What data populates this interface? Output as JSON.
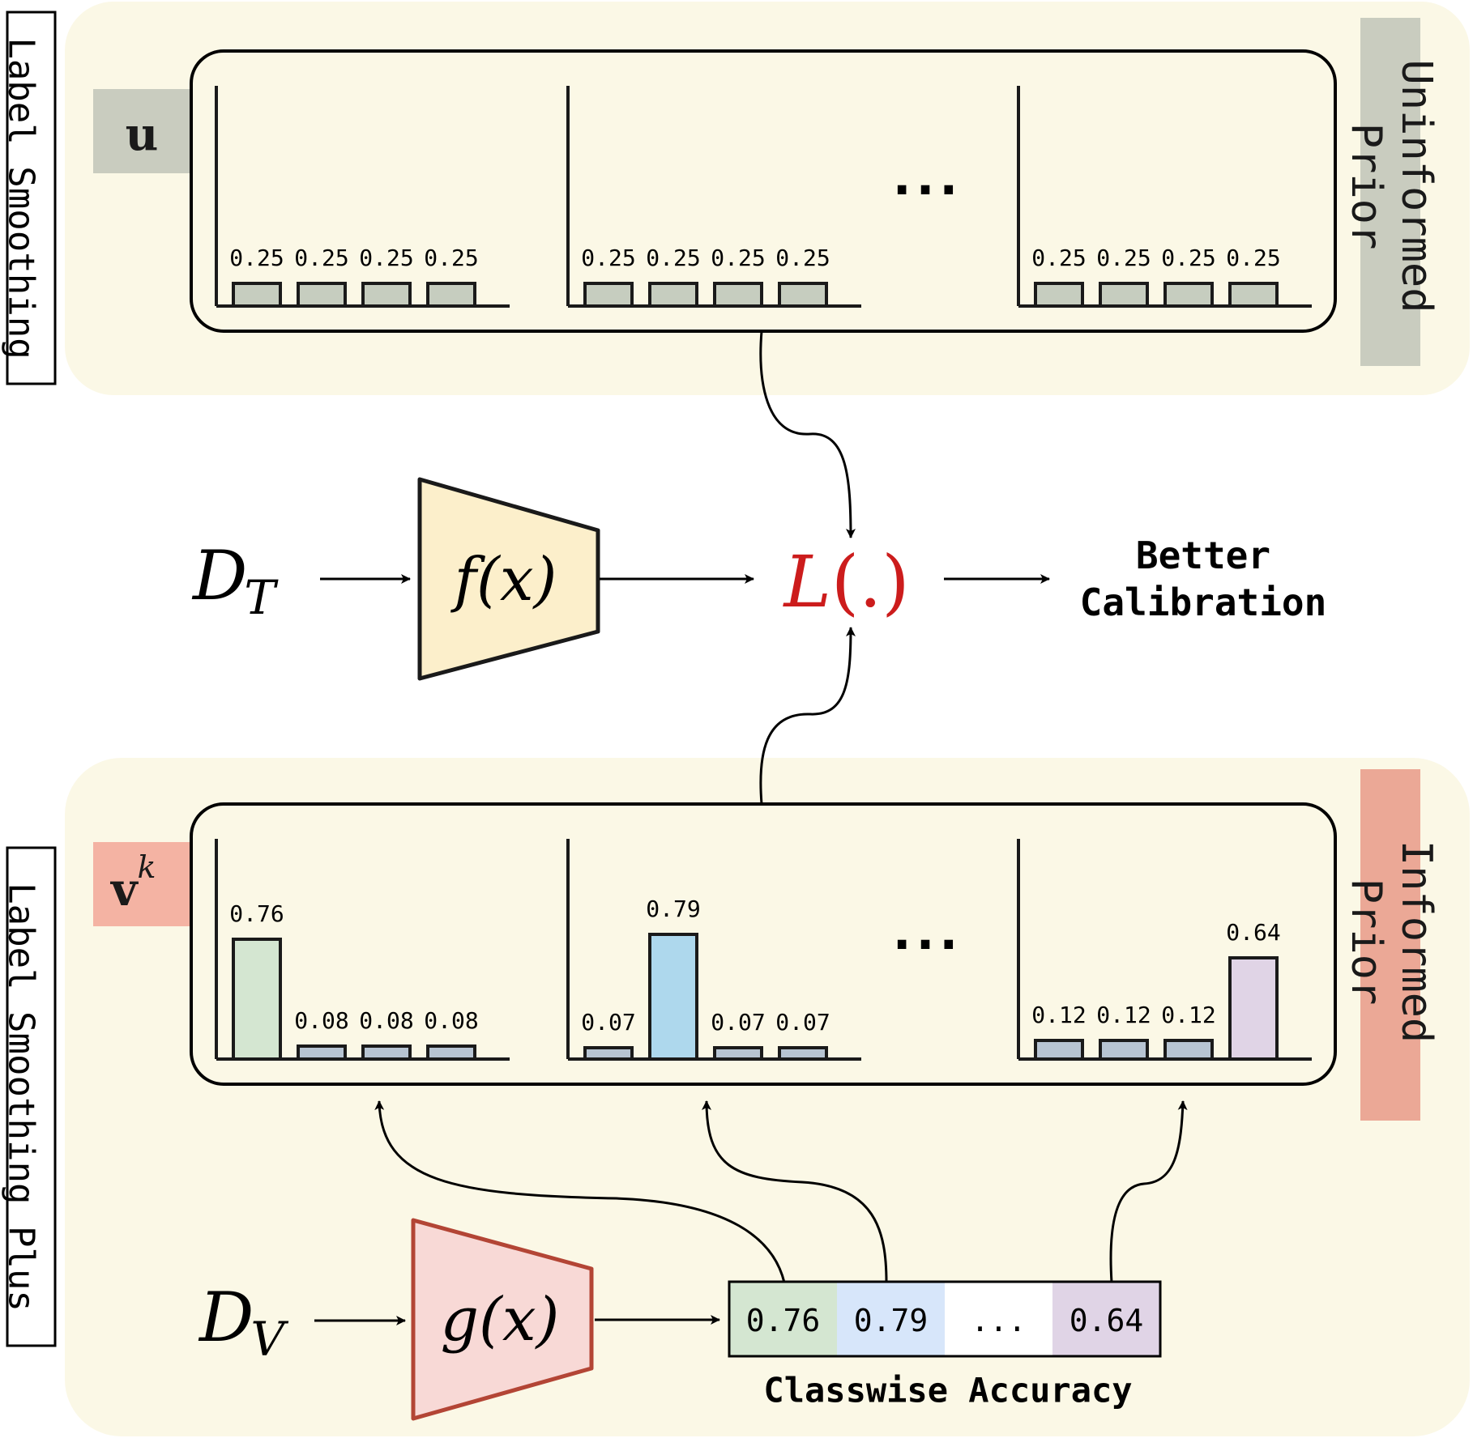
{
  "colors": {
    "panel_bg": "#fbf8e6",
    "uniform_bar": "#c6cdbf",
    "label_u_bg": "#c9ccbf",
    "label_v_bg": "#f4b3a3",
    "tab_uninformed_bg": "#c9ccbf",
    "tab_informed_bg": "#eba896",
    "small_bar": "#b7c4d2",
    "class1_bar": "#d4e6d1",
    "class2_bar": "#aed8ed",
    "class3_bar": "#e0d4e6",
    "fx_fill": "#fcefcb",
    "gx_fill": "#f8d9d6",
    "gx_stroke": "#b34535",
    "loss_color": "#cc1c1c",
    "acc_cell1": "#d4e6d1",
    "acc_cell2": "#d7e6fa",
    "acc_cell3": "#ffffff",
    "acc_cell4": "#e0d4e6"
  },
  "top": {
    "side_label": "Label Smoothing",
    "vector_label": "u",
    "tab_label_line1": "Uninformed",
    "tab_label_line2": "Prior",
    "ellipsis": "...",
    "groups": [
      {
        "values": [
          "0.25",
          "0.25",
          "0.25",
          "0.25"
        ]
      },
      {
        "values": [
          "0.25",
          "0.25",
          "0.25",
          "0.25"
        ]
      },
      {
        "values": [
          "0.25",
          "0.25",
          "0.25",
          "0.25"
        ]
      }
    ]
  },
  "middle": {
    "input": "D",
    "input_sub": "T",
    "model": "f(x)",
    "loss_L": "L",
    "loss_args": "(.)",
    "output_line1": "Better",
    "output_line2": "Calibration"
  },
  "bottom": {
    "side_label": "Label Smoothing Plus",
    "vector_label": "v",
    "vector_sup": "k",
    "tab_label_line1": "Informed",
    "tab_label_line2": "Prior",
    "ellipsis": "...",
    "groups": [
      {
        "values": [
          "0.76",
          "0.08",
          "0.08",
          "0.08"
        ],
        "heights": [
          0.76,
          0.08,
          0.08,
          0.08
        ],
        "highlight": 0
      },
      {
        "values": [
          "0.07",
          "0.79",
          "0.07",
          "0.07"
        ],
        "heights": [
          0.07,
          0.79,
          0.07,
          0.07
        ],
        "highlight": 1
      },
      {
        "values": [
          "0.12",
          "0.12",
          "0.12",
          "0.64"
        ],
        "heights": [
          0.12,
          0.12,
          0.12,
          0.64
        ],
        "highlight": 3
      }
    ],
    "input": "D",
    "input_sub": "V",
    "model": "g(x)",
    "accuracy_cells": [
      "0.76",
      "0.79",
      "...",
      "0.64"
    ],
    "accuracy_caption": "Classwise Accuracy"
  }
}
